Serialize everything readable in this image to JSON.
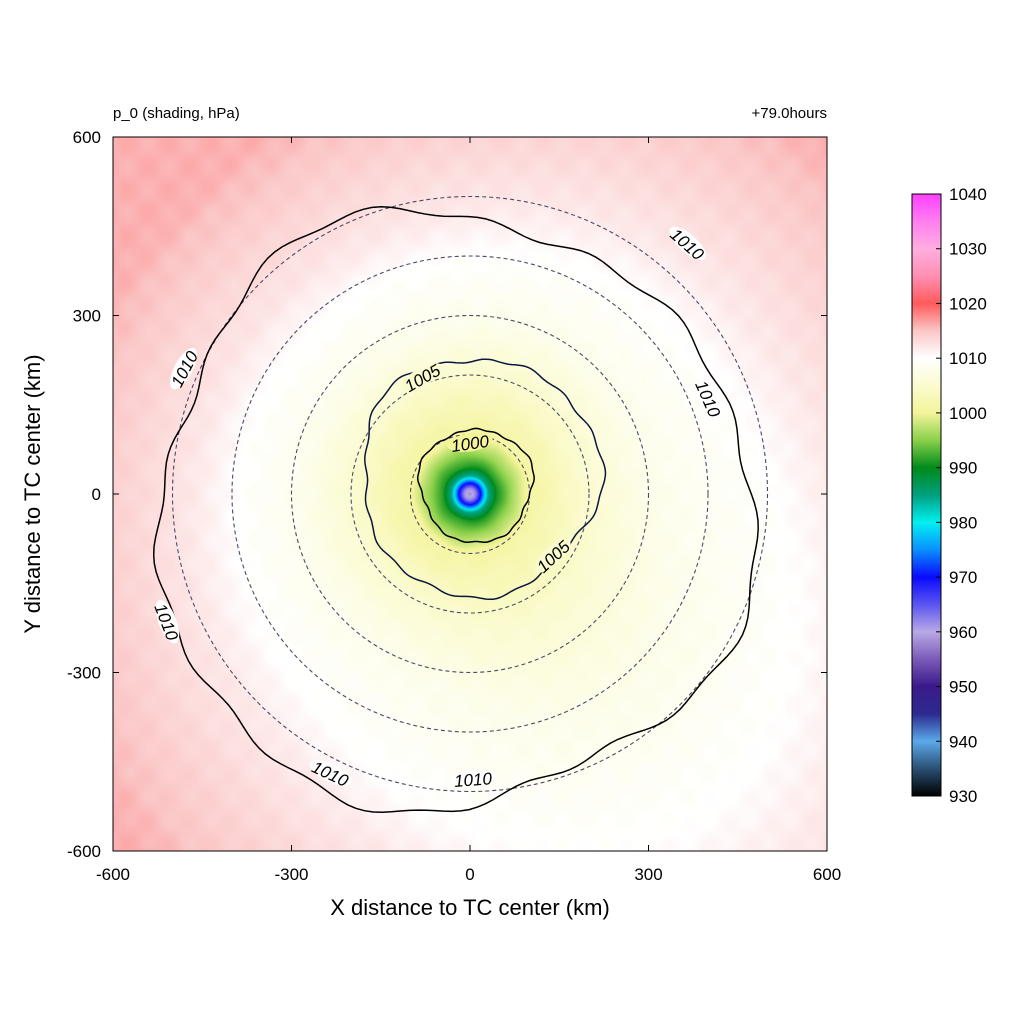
{
  "chart_data": {
    "type": "heatmap",
    "title_left": "p_0 (shading, hPa)",
    "title_right": "+79.0hours",
    "xlabel": "X distance to TC center (km)",
    "ylabel": "Y distance to TC center (km)",
    "xlim": [
      -600,
      600
    ],
    "ylim": [
      -600,
      600
    ],
    "xticks": [
      "-600",
      "-300",
      "0",
      "300",
      "600"
    ],
    "yticks": [
      "-600",
      "-300",
      "0",
      "300",
      "600"
    ],
    "colorbar": {
      "min": 930,
      "max": 1040,
      "ticks": [
        "930",
        "940",
        "950",
        "960",
        "970",
        "980",
        "990",
        "1000",
        "1010",
        "1020",
        "1030",
        "1040"
      ],
      "stops": [
        {
          "value": 930,
          "color": "#000000"
        },
        {
          "value": 935,
          "color": "#2a4f73"
        },
        {
          "value": 940,
          "color": "#5ba9ea"
        },
        {
          "value": 945,
          "color": "#2c2a8f"
        },
        {
          "value": 950,
          "color": "#3a1a8a"
        },
        {
          "value": 955,
          "color": "#7a5ab8"
        },
        {
          "value": 960,
          "color": "#b9a9e6"
        },
        {
          "value": 965,
          "color": "#5a55f0"
        },
        {
          "value": 970,
          "color": "#0a0aff"
        },
        {
          "value": 975,
          "color": "#0a90ff"
        },
        {
          "value": 980,
          "color": "#00f0f0"
        },
        {
          "value": 985,
          "color": "#00a080"
        },
        {
          "value": 990,
          "color": "#008a1a"
        },
        {
          "value": 995,
          "color": "#8ad04a"
        },
        {
          "value": 1000,
          "color": "#f4f49a"
        },
        {
          "value": 1005,
          "color": "#fbfbd0"
        },
        {
          "value": 1010,
          "color": "#ffffff"
        },
        {
          "value": 1015,
          "color": "#fbc6c6"
        },
        {
          "value": 1020,
          "color": "#ff5a5a"
        },
        {
          "value": 1025,
          "color": "#ff8fb4"
        },
        {
          "value": 1030,
          "color": "#ffaee0"
        },
        {
          "value": 1035,
          "color": "#ff7ef0"
        },
        {
          "value": 1040,
          "color": "#ff40ff"
        }
      ]
    },
    "field": {
      "center_km": [
        0,
        0
      ],
      "center_pressure": 958,
      "radial_profile_km_hpa": [
        [
          0,
          958
        ],
        [
          10,
          962
        ],
        [
          20,
          972
        ],
        [
          30,
          984
        ],
        [
          45,
          991
        ],
        [
          70,
          996
        ],
        [
          100,
          1001
        ],
        [
          200,
          1005
        ],
        [
          300,
          1008
        ],
        [
          450,
          1010
        ],
        [
          550,
          1012
        ],
        [
          850,
          1016
        ]
      ]
    },
    "contours": [
      {
        "level": 1000,
        "label": "1000",
        "radius_km": 95,
        "center_km": [
          10,
          15
        ],
        "labels_at": [
          [
            0,
            85
          ]
        ]
      },
      {
        "level": 1005,
        "label": "1005",
        "radius_km": 200,
        "center_km": [
          15,
          30
        ],
        "labels_at": [
          [
            -80,
            195
          ],
          [
            140,
            -105
          ]
        ]
      },
      {
        "level": 1010,
        "label": "1010",
        "radius_km": 500,
        "center_km": [
          -30,
          -30
        ],
        "labels_at": [
          [
            365,
            420
          ],
          [
            -480,
            210
          ],
          [
            400,
            160
          ],
          [
            -510,
            -215
          ],
          [
            -235,
            -470
          ],
          [
            5,
            -480
          ]
        ]
      }
    ],
    "range_rings_km": [
      100,
      200,
      300,
      400,
      500
    ]
  }
}
